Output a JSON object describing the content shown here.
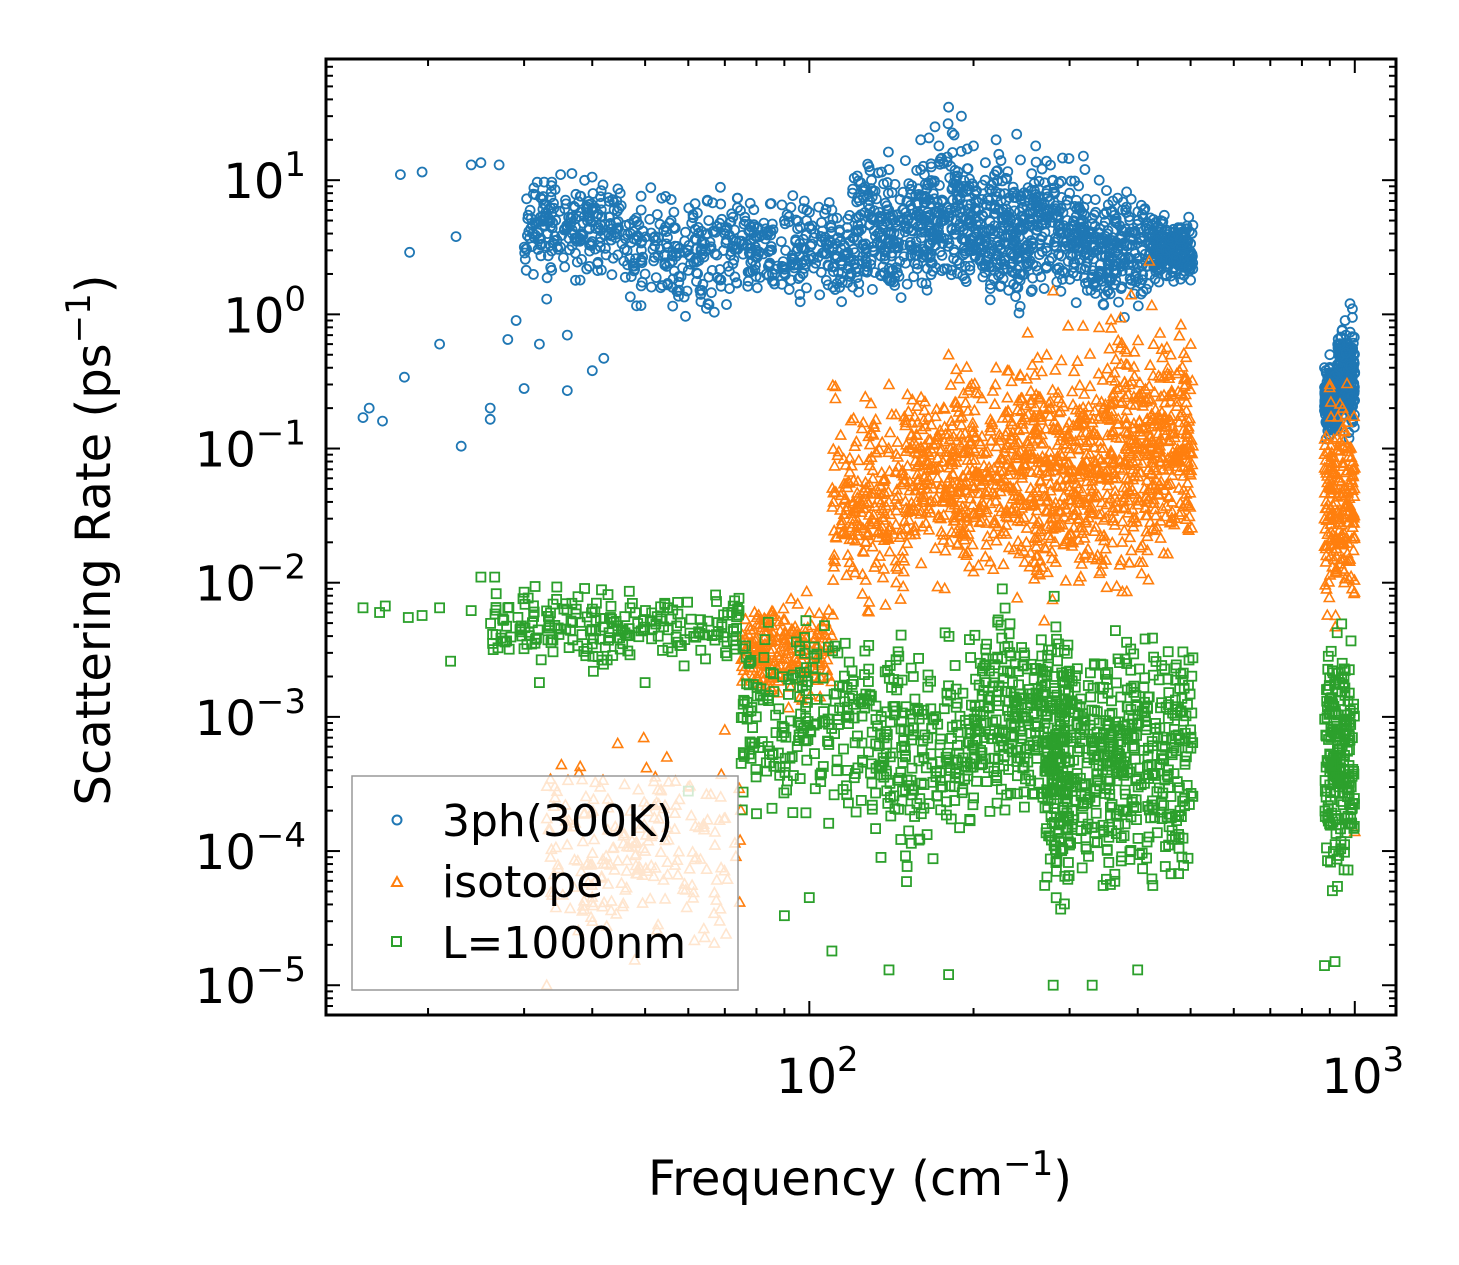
{
  "chart_data": {
    "type": "scatter",
    "title": "",
    "xlabel": "Frequency (cm",
    "xlabel_sup": "−1",
    "xlabel_end": ")",
    "ylabel": "Scattering Rate (ps",
    "ylabel_sup": "−1",
    "ylabel_end": ")",
    "xscale": "log",
    "yscale": "log",
    "xlim": [
      13,
      1190
    ],
    "ylim": [
      6e-06,
      80
    ],
    "xticks": [
      {
        "value": 100,
        "base": "10",
        "exp": "2"
      },
      {
        "value": 1000,
        "base": "10",
        "exp": "3"
      }
    ],
    "yticks": [
      {
        "value": 10,
        "base": "10",
        "exp": "1"
      },
      {
        "value": 1,
        "base": "10",
        "exp": "0"
      },
      {
        "value": 0.1,
        "base": "10",
        "exp": "−1"
      },
      {
        "value": 0.01,
        "base": "10",
        "exp": "−2"
      },
      {
        "value": 0.001,
        "base": "10",
        "exp": "−3"
      },
      {
        "value": 0.0001,
        "base": "10",
        "exp": "−4"
      },
      {
        "value": 1e-05,
        "base": "10",
        "exp": "−5"
      }
    ],
    "legend_position": "lower-left",
    "series": [
      {
        "name": "3ph(300K)",
        "marker": "circle",
        "color": "#1f77b4",
        "points": [
          [
            15.2,
            0.17
          ],
          [
            15.6,
            0.2
          ],
          [
            16.5,
            0.16
          ],
          [
            17.8,
            11
          ],
          [
            18.1,
            0.34
          ],
          [
            18.5,
            2.9
          ],
          [
            19.5,
            11.5
          ],
          [
            21,
            0.6
          ],
          [
            22.5,
            3.8
          ],
          [
            23,
            0.104
          ],
          [
            24,
            13
          ],
          [
            25,
            13.5
          ],
          [
            26,
            0.2
          ],
          [
            26,
            0.165
          ],
          [
            27,
            13
          ],
          [
            28,
            0.65
          ],
          [
            29,
            0.9
          ],
          [
            30,
            0.28
          ],
          [
            31,
            3.2
          ],
          [
            32,
            0.6
          ],
          [
            33,
            1.3
          ],
          [
            35,
            11
          ],
          [
            36,
            0.7
          ],
          [
            36,
            0.27
          ],
          [
            38,
            1.8
          ],
          [
            40,
            0.38
          ],
          [
            42,
            0.47
          ],
          [
            45,
            8
          ],
          [
            47,
            4
          ],
          [
            50,
            2
          ],
          [
            55,
            1.7
          ],
          [
            60,
            3
          ],
          [
            65,
            7
          ],
          [
            70,
            4
          ],
          [
            80,
            3
          ],
          [
            90,
            5
          ],
          [
            100,
            4.5
          ],
          [
            110,
            6
          ],
          [
            120,
            8
          ],
          [
            130,
            10
          ],
          [
            140,
            12
          ],
          [
            150,
            14
          ],
          [
            160,
            20
          ],
          [
            170,
            25
          ],
          [
            180,
            35
          ],
          [
            190,
            30
          ],
          [
            200,
            18
          ],
          [
            210,
            10
          ],
          [
            220,
            20
          ],
          [
            240,
            22
          ],
          [
            260,
            18
          ],
          [
            280,
            10
          ],
          [
            300,
            8
          ],
          [
            320,
            12
          ],
          [
            340,
            10
          ],
          [
            360,
            7
          ],
          [
            380,
            6
          ],
          [
            400,
            5
          ],
          [
            420,
            4
          ],
          [
            450,
            3
          ],
          [
            480,
            2
          ],
          [
            500,
            1.8
          ],
          [
            880,
            0.4
          ],
          [
            900,
            0.5
          ],
          [
            920,
            0.35
          ],
          [
            940,
            0.6
          ],
          [
            960,
            0.9
          ],
          [
            980,
            1.2
          ],
          [
            990,
            1.1
          ]
        ],
        "bands": [
          {
            "from": 30,
            "to": 45,
            "low": 1.5,
            "high": 14
          },
          {
            "from": 45,
            "to": 75,
            "low": 0.8,
            "high": 12
          },
          {
            "from": 75,
            "to": 120,
            "low": 0.9,
            "high": 9
          },
          {
            "from": 120,
            "to": 160,
            "low": 0.8,
            "high": 20
          },
          {
            "from": 160,
            "to": 200,
            "low": 0.9,
            "high": 35
          },
          {
            "from": 200,
            "to": 250,
            "low": 0.7,
            "high": 22
          },
          {
            "from": 250,
            "to": 320,
            "low": 1.0,
            "high": 20
          },
          {
            "from": 320,
            "to": 420,
            "low": 0.8,
            "high": 12
          },
          {
            "from": 420,
            "to": 505,
            "low": 1.5,
            "high": 6
          },
          {
            "from": 880,
            "to": 930,
            "low": 0.1,
            "high": 0.5
          },
          {
            "from": 930,
            "to": 1000,
            "low": 0.1,
            "high": 1.2
          }
        ]
      },
      {
        "name": "isotope",
        "marker": "triangle",
        "color": "#ff7f0e",
        "points": [
          [
            33,
            1e-05
          ],
          [
            40,
            3e-05
          ],
          [
            50,
            0.0001
          ],
          [
            60,
            0.0003
          ],
          [
            70,
            0.0008
          ],
          [
            80,
            0.002
          ],
          [
            100,
            0.006
          ],
          [
            120,
            0.03
          ],
          [
            140,
            0.3
          ],
          [
            160,
            0.1
          ],
          [
            180,
            0.5
          ],
          [
            200,
            0.1
          ],
          [
            220,
            0.4
          ],
          [
            250,
            0.02
          ],
          [
            280,
            1.5
          ],
          [
            300,
            0.1
          ],
          [
            340,
            0.8
          ],
          [
            380,
            0.1
          ],
          [
            420,
            2.5
          ],
          [
            460,
            0.5
          ],
          [
            490,
            0.3
          ],
          [
            495,
            0.14
          ],
          [
            880,
            0.03
          ],
          [
            900,
            0.3
          ],
          [
            920,
            0.05
          ],
          [
            950,
            0.2
          ],
          [
            980,
            0.015
          ],
          [
            1000,
            0.00014
          ]
        ],
        "bands": [
          {
            "from": 33,
            "to": 75,
            "low": 1e-05,
            "high": 0.001
          },
          {
            "from": 75,
            "to": 110,
            "low": 0.001,
            "high": 0.01
          },
          {
            "from": 110,
            "to": 150,
            "low": 0.004,
            "high": 0.4
          },
          {
            "from": 150,
            "to": 190,
            "low": 0.008,
            "high": 0.5
          },
          {
            "from": 190,
            "to": 240,
            "low": 0.006,
            "high": 0.6
          },
          {
            "from": 240,
            "to": 290,
            "low": 0.003,
            "high": 1.8
          },
          {
            "from": 290,
            "to": 350,
            "low": 0.005,
            "high": 0.9
          },
          {
            "from": 350,
            "to": 420,
            "low": 0.004,
            "high": 2.5
          },
          {
            "from": 420,
            "to": 505,
            "low": 0.01,
            "high": 1.5
          },
          {
            "from": 880,
            "to": 1000,
            "low": 0.003,
            "high": 0.4
          }
        ]
      },
      {
        "name": "L=1000nm",
        "marker": "square",
        "color": "#2ca02c",
        "points": [
          [
            15.2,
            0.0065
          ],
          [
            16.3,
            0.006
          ],
          [
            16.7,
            0.0067
          ],
          [
            18.4,
            0.0055
          ],
          [
            19.5,
            0.0057
          ],
          [
            21,
            0.0065
          ],
          [
            22,
            0.0026
          ],
          [
            24,
            0.0062
          ],
          [
            25,
            0.011
          ],
          [
            26.5,
            0.011
          ],
          [
            28,
            0.0065
          ],
          [
            30,
            0.0085
          ],
          [
            32,
            0.0018
          ],
          [
            35,
            0.0045
          ],
          [
            40,
            0.0035
          ],
          [
            45,
            0.0032
          ],
          [
            50,
            0.0018
          ],
          [
            60,
            0.00028
          ],
          [
            75,
            0.00045
          ],
          [
            80,
            0.00019
          ],
          [
            90,
            3.3e-05
          ],
          [
            100,
            4.5e-05
          ],
          [
            110,
            1.8e-05
          ],
          [
            140,
            1.3e-05
          ],
          [
            180,
            1.2e-05
          ],
          [
            280,
            1e-05
          ],
          [
            330,
            1e-05
          ],
          [
            400,
            1.3e-05
          ],
          [
            500,
            0.0008
          ],
          [
            880,
            1.4e-05
          ],
          [
            920,
            1.5e-05
          ],
          [
            990,
            0.0007
          ]
        ],
        "bands": [
          {
            "from": 26,
            "to": 75,
            "low": 0.002,
            "high": 0.011
          },
          {
            "from": 75,
            "to": 130,
            "low": 0.0001,
            "high": 0.009
          },
          {
            "from": 130,
            "to": 200,
            "low": 5e-05,
            "high": 0.007
          },
          {
            "from": 200,
            "to": 270,
            "low": 0.0001,
            "high": 0.012
          },
          {
            "from": 270,
            "to": 300,
            "low": 2e-05,
            "high": 0.011
          },
          {
            "from": 300,
            "to": 380,
            "low": 3e-05,
            "high": 0.007
          },
          {
            "from": 380,
            "to": 505,
            "low": 3e-05,
            "high": 0.009
          },
          {
            "from": 880,
            "to": 1000,
            "low": 3e-05,
            "high": 0.008
          }
        ]
      }
    ]
  }
}
